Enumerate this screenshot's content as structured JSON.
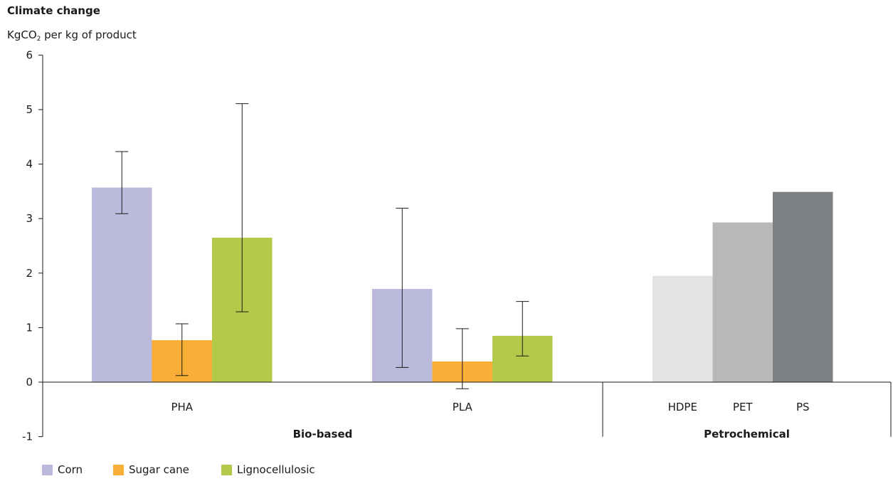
{
  "chart_data": {
    "type": "bar",
    "title": "Climate change",
    "ylabel": {
      "pre": "KgCO",
      "sub": "2",
      "post": " per kg of product"
    },
    "ylim": [
      -1,
      6
    ],
    "yticks": [
      6,
      5,
      4,
      3,
      2,
      1,
      0,
      -1
    ],
    "groups": [
      {
        "name": "Bio-based",
        "categories": [
          "PHA",
          "PLA"
        ]
      },
      {
        "name": "Petrochemical",
        "categories": [
          "HDPE",
          "PET",
          "PS"
        ]
      }
    ],
    "series": [
      {
        "name": "Corn",
        "color": "#bcbadc",
        "values": {
          "PHA": 3.57,
          "PLA": 1.71
        },
        "error_low": {
          "PHA": 3.09,
          "PLA": 0.27
        },
        "error_high": {
          "PHA": 4.23,
          "PLA": 3.19
        }
      },
      {
        "name": "Sugar cane",
        "color": "#f9ae38",
        "values": {
          "PHA": 0.77,
          "PLA": 0.38
        },
        "error_low": {
          "PHA": 0.12,
          "PLA": -0.12
        },
        "error_high": {
          "PHA": 1.07,
          "PLA": 0.98
        }
      },
      {
        "name": "Lignocellulosic",
        "color": "#b2c94a",
        "values": {
          "PHA": 2.65,
          "PLA": 0.85
        },
        "error_low": {
          "PHA": 1.29,
          "PLA": 0.48
        },
        "error_high": {
          "PHA": 5.11,
          "PLA": 1.48
        }
      }
    ],
    "petrochemical": [
      {
        "category": "HDPE",
        "value": 1.95,
        "color": "#e4e5e3"
      },
      {
        "category": "PET",
        "value": 2.93,
        "color": "#b7b8b7"
      },
      {
        "category": "PS",
        "value": 3.49,
        "color": "#7d8083"
      }
    ],
    "legend_position": "bottom-left",
    "grid": false
  }
}
